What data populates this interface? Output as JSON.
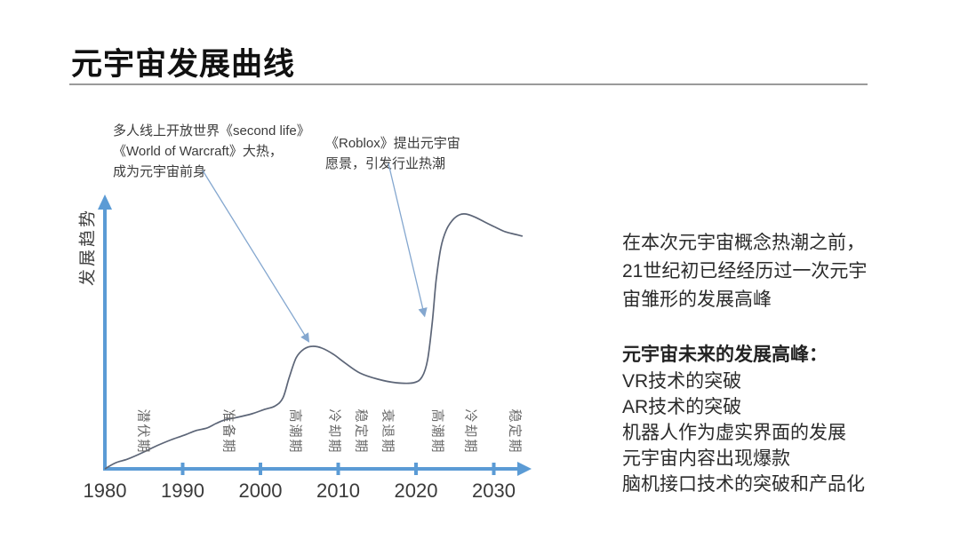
{
  "slide": {
    "title": "元宇宙发展曲线"
  },
  "annotations": {
    "annotation_1": "多人线上开放世界《second life》\n《World of Warcraft》大热，\n成为元宇宙前身",
    "annotation_2": "《Roblox》提出元宇宙\n愿景，引发行业热潮"
  },
  "right_panel": {
    "paragraph_1": "在本次元宇宙概念热潮之前，\n21世纪初已经经历过一次元宇\n宙雏形的发展高峰",
    "future_heading": "元宇宙未来的发展高峰：",
    "future_items": [
      "VR技术的突破",
      "AR技术的突破",
      "机器人作为虚实界面的发展",
      "元宇宙内容出现爆款",
      "脑机接口技术的突破和产品化"
    ]
  },
  "chart_data": {
    "type": "line",
    "title": "元宇宙发展曲线",
    "xlabel": "",
    "ylabel": "发展趋势",
    "x_ticks": [
      1980,
      1990,
      2000,
      2010,
      2020,
      2030
    ],
    "x_range": [
      1980,
      2035
    ],
    "ylim": [
      0,
      100
    ],
    "grid": false,
    "legend": "none",
    "phases": [
      {
        "label": "潜伏期",
        "year": 1985
      },
      {
        "label": "准备期",
        "year": 1996
      },
      {
        "label": "高潮期",
        "year": 2004.6
      },
      {
        "label": "冷却期",
        "year": 2009.6
      },
      {
        "label": "稳定期",
        "year": 2013
      },
      {
        "label": "衰退期",
        "year": 2016.5
      },
      {
        "label": "高潮期",
        "year": 2022.8
      },
      {
        "label": "冷却期",
        "year": 2027.1
      },
      {
        "label": "稳定期",
        "year": 2032.8
      }
    ],
    "series": [
      {
        "name": "元宇宙发展趋势",
        "points": [
          [
            1980,
            0
          ],
          [
            1981.4,
            2.4
          ],
          [
            1982.9,
            3.8
          ],
          [
            1984.8,
            6.3
          ],
          [
            1986.7,
            9.1
          ],
          [
            1988.6,
            11.5
          ],
          [
            1990.2,
            13.2
          ],
          [
            1991.7,
            15
          ],
          [
            1993.1,
            16
          ],
          [
            1994.3,
            17.8
          ],
          [
            1995.4,
            19.2
          ],
          [
            1997,
            20.2
          ],
          [
            1998.9,
            21.6
          ],
          [
            2000.5,
            23.3
          ],
          [
            2001.9,
            24.7
          ],
          [
            2002.9,
            27.9
          ],
          [
            2003.7,
            35.9
          ],
          [
            2004.6,
            43.6
          ],
          [
            2005.6,
            47
          ],
          [
            2006.7,
            48.1
          ],
          [
            2007.9,
            47.4
          ],
          [
            2009.4,
            44.9
          ],
          [
            2010.9,
            41.5
          ],
          [
            2012.8,
            37.6
          ],
          [
            2015.1,
            35.2
          ],
          [
            2017.4,
            33.8
          ],
          [
            2019.7,
            33.8
          ],
          [
            2020.8,
            36.2
          ],
          [
            2021.5,
            42.9
          ],
          [
            2022.1,
            57.8
          ],
          [
            2022.6,
            74.2
          ],
          [
            2023.2,
            86.8
          ],
          [
            2023.9,
            93.7
          ],
          [
            2024.7,
            97.6
          ],
          [
            2025.6,
            99.7
          ],
          [
            2026.4,
            100
          ],
          [
            2027.5,
            98.9
          ],
          [
            2028.8,
            96.9
          ],
          [
            2030.2,
            94.8
          ],
          [
            2031.5,
            93
          ],
          [
            2032.8,
            92
          ],
          [
            2033.7,
            91.3
          ]
        ]
      }
    ],
    "annotation_targets": [
      {
        "text": "annotation_1",
        "year": 2006.2,
        "trend": 50
      },
      {
        "text": "annotation_2",
        "year": 2021.1,
        "trend": 60
      }
    ],
    "colors": {
      "axis": "#5b9bd5",
      "curve": "#5c6577",
      "annotation_arrow": "#84a7cf"
    }
  }
}
